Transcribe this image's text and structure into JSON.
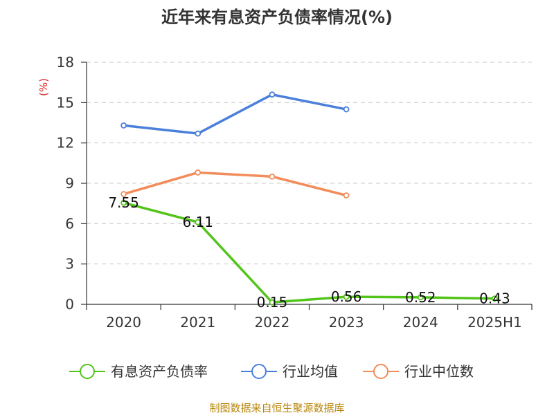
{
  "chart_data": {
    "type": "line",
    "title": "近年来有息资产负债率情况(%)",
    "ylabel": "(%)",
    "categories": [
      "2020",
      "2021",
      "2022",
      "2023",
      "2024",
      "2025H1"
    ],
    "ylim": [
      0,
      18
    ],
    "yticks": [
      0,
      3,
      6,
      9,
      12,
      15,
      18
    ],
    "grid": true,
    "legend_position": "bottom",
    "series": [
      {
        "name": "有息资产负债率",
        "color": "#52c41a",
        "values": [
          7.55,
          6.11,
          0.15,
          0.56,
          0.52,
          0.43
        ],
        "labels": [
          "7.55",
          "6.11",
          "0.15",
          "0.56",
          "0.52",
          "0.43"
        ]
      },
      {
        "name": "行业均值",
        "color": "#4a7fdb",
        "values": [
          13.3,
          12.7,
          15.6,
          14.5,
          null,
          null
        ]
      },
      {
        "name": "行业中位数",
        "color": "#f28c5a",
        "values": [
          8.2,
          9.8,
          9.5,
          8.1,
          null,
          null
        ]
      }
    ],
    "source": "制图数据来自恒生聚源数据库"
  }
}
